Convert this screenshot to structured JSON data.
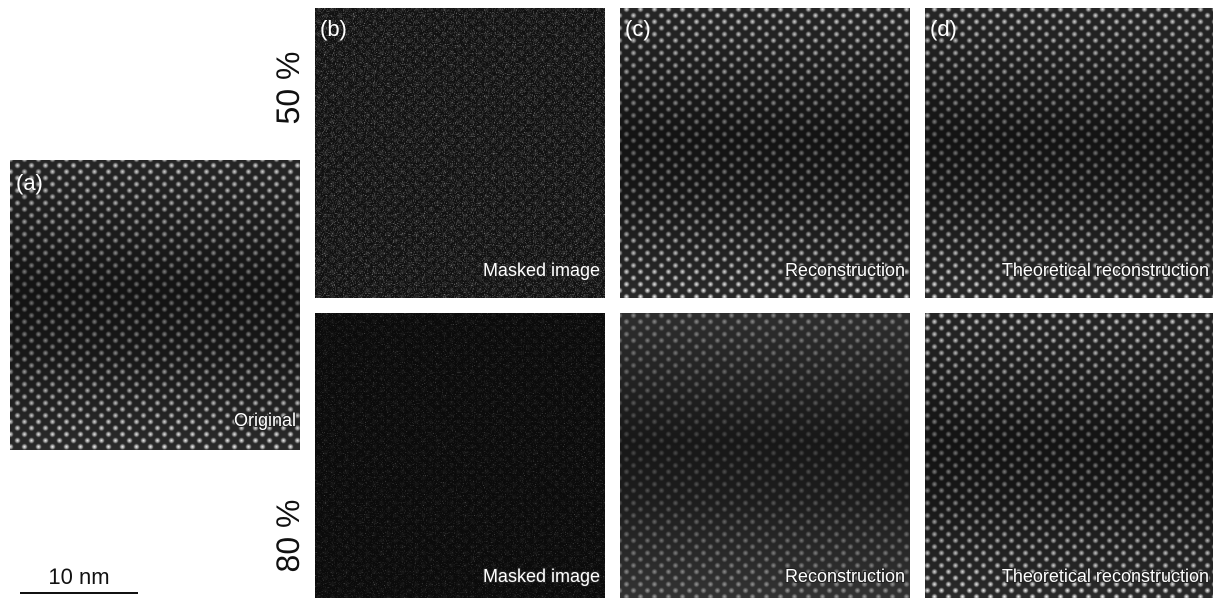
{
  "panels": [
    {
      "label": "(a)",
      "caption": "Original"
    },
    {
      "label": "(b)",
      "caption": "Masked image"
    },
    {
      "label": "(c)",
      "caption": "Reconstruction"
    },
    {
      "label": "(d)",
      "caption": "Theoretical reconstruction"
    },
    {
      "caption": "Masked image"
    },
    {
      "caption": "Reconstruction"
    },
    {
      "caption": "Theoretical reconstruction"
    }
  ],
  "rows": [
    "50 %",
    "80 %"
  ],
  "scale_bar": "10 nm"
}
